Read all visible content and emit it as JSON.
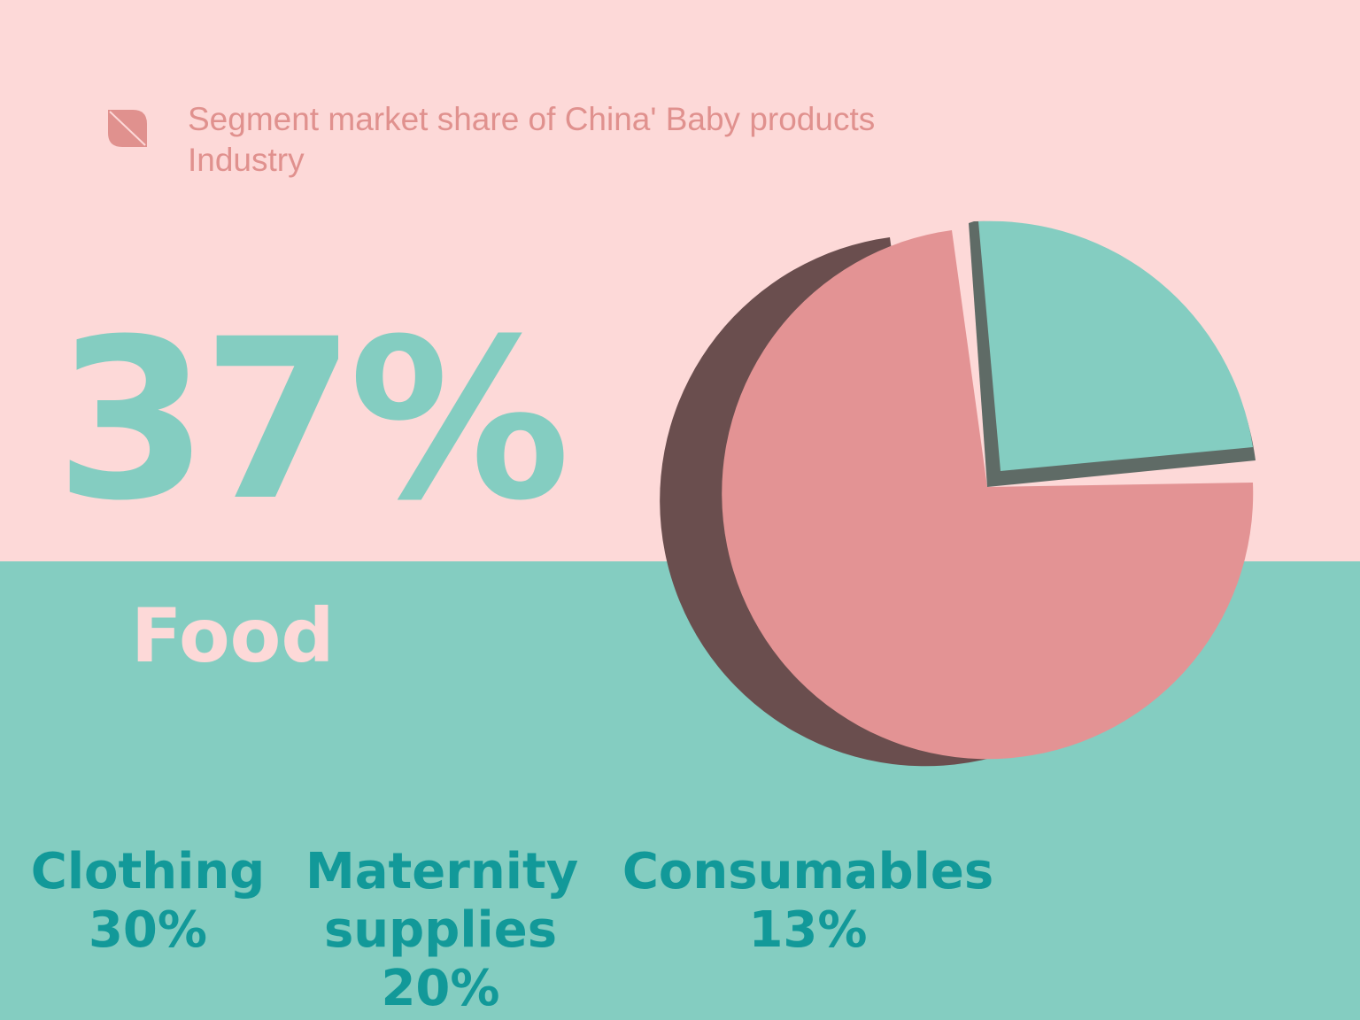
{
  "title": "Segment market share of China' Baby products Industry",
  "highlight": {
    "value": "37%",
    "label": "Food"
  },
  "segments": [
    {
      "label": "Clothing",
      "value": "30%"
    },
    {
      "label": "Maternity supplies",
      "value": "20%"
    },
    {
      "label": "Consumables",
      "value": "13%"
    }
  ]
}
